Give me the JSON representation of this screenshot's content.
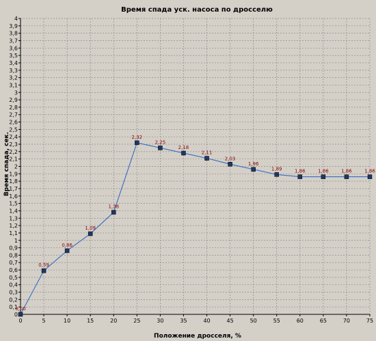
{
  "chart_data": {
    "type": "line",
    "title": "Время спада уск. насоса по дросселю",
    "xlabel": "Положение дросселя, %",
    "ylabel": "Время спада, сек.",
    "x": [
      0,
      5,
      10,
      15,
      20,
      25,
      30,
      35,
      40,
      45,
      50,
      55,
      60,
      65,
      70,
      75
    ],
    "series": [
      {
        "values": [
          0.0,
          0.59,
          0.86,
          1.09,
          1.38,
          2.32,
          2.25,
          2.18,
          2.11,
          2.03,
          1.96,
          1.89,
          1.86,
          1.86,
          1.86,
          1.86
        ],
        "labels": [
          "0,00",
          "0,59",
          "0,86",
          "1,09",
          "1,38",
          "2,32",
          "2,25",
          "2,18",
          "2,11",
          "2,03",
          "1,96",
          "1,89",
          "1,86",
          "1,86",
          "1,86",
          "1,86"
        ]
      }
    ],
    "xlim": [
      0,
      75
    ],
    "ylim": [
      0,
      4
    ],
    "xticks": [
      "0",
      "5",
      "10",
      "15",
      "20",
      "25",
      "30",
      "35",
      "40",
      "45",
      "50",
      "55",
      "60",
      "65",
      "70",
      "75"
    ],
    "yticks": [
      "0",
      "0,1",
      "0,2",
      "0,3",
      "0,4",
      "0,5",
      "0,6",
      "0,7",
      "0,8",
      "0,9",
      "1",
      "1,1",
      "1,2",
      "1,3",
      "1,4",
      "1,5",
      "1,6",
      "1,7",
      "1,8",
      "1,9",
      "2",
      "2,1",
      "2,2",
      "2,3",
      "2,4",
      "2,5",
      "2,6",
      "2,7",
      "2,8",
      "2,9",
      "3",
      "3,1",
      "3,2",
      "3,3",
      "3,4",
      "3,5",
      "3,6",
      "3,7",
      "3,8",
      "3,9",
      "4"
    ],
    "grid": true,
    "colors": {
      "line": "#4472c4",
      "marker": "#1f3864",
      "data_label": "#8b0000",
      "grid": "#8c8c8c",
      "background": "#d4d0c8"
    }
  }
}
